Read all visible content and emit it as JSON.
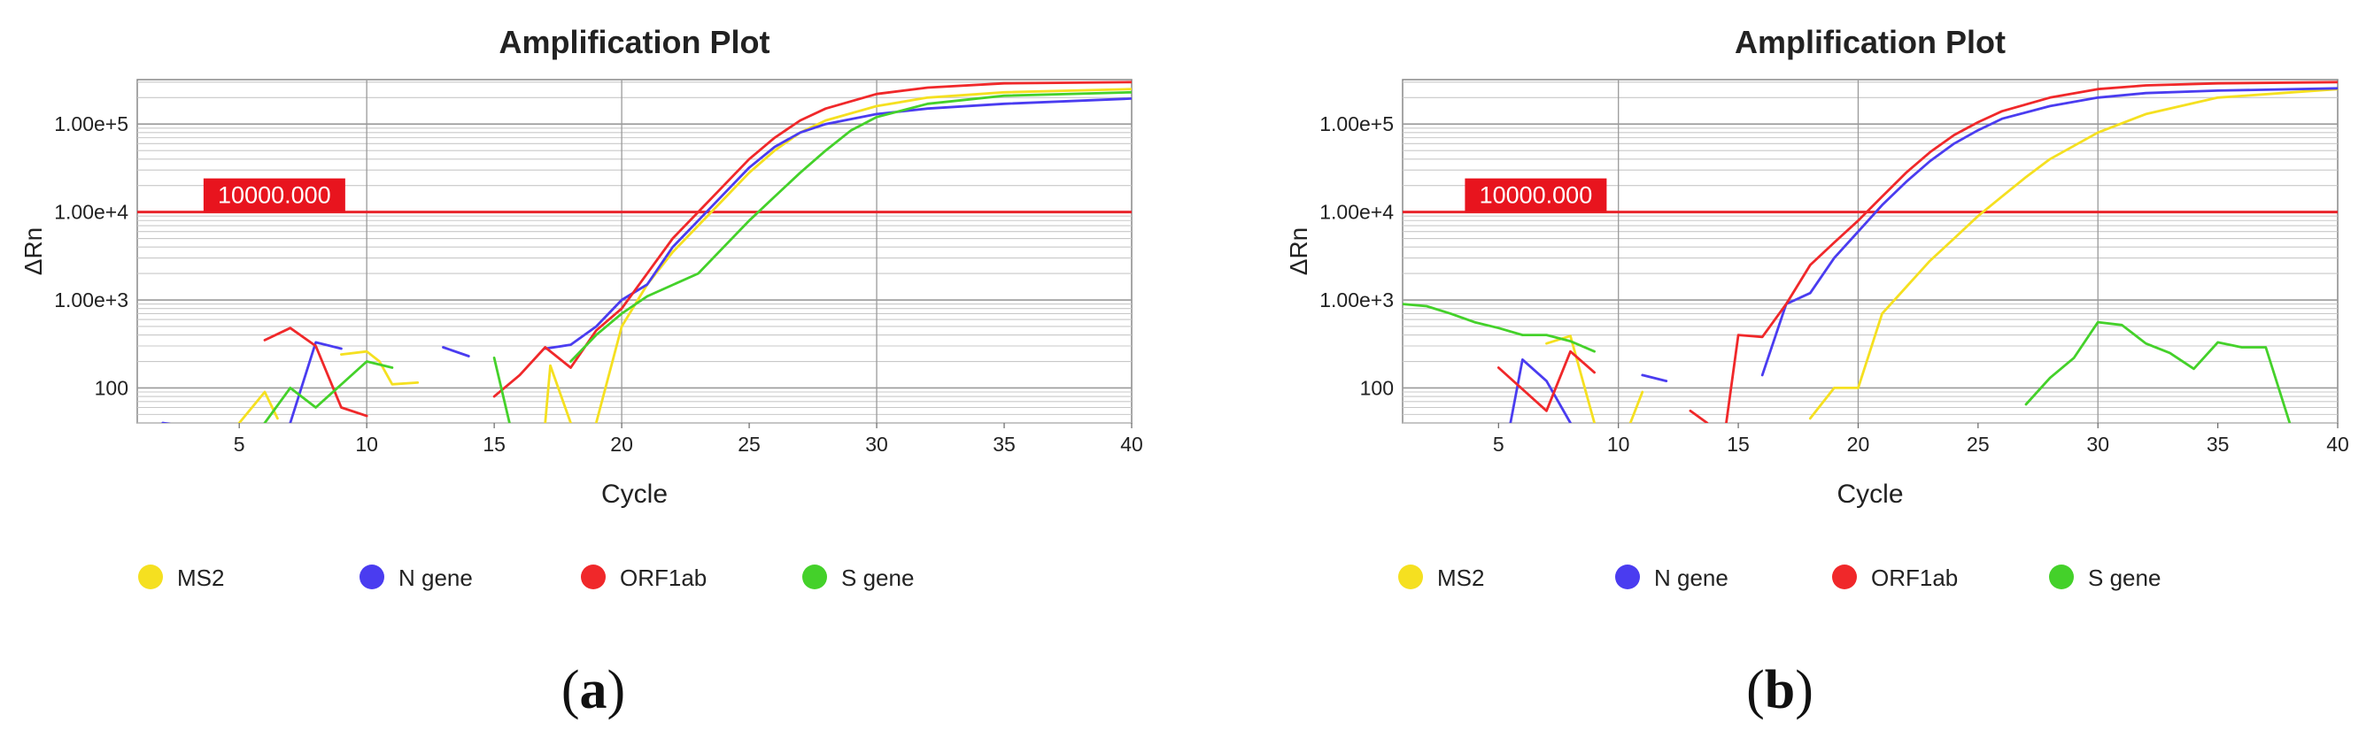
{
  "chart_data": [
    {
      "type": "line",
      "panel_label": "a",
      "title": "Amplification Plot",
      "xlabel": "Cycle",
      "ylabel": "ΔRn",
      "xlim": [
        1,
        40
      ],
      "ylim_log": [
        40,
        320000
      ],
      "y_scale": "log",
      "x_ticks": [
        5,
        10,
        15,
        20,
        25,
        30,
        35,
        40
      ],
      "y_ticks": [
        {
          "value": 100,
          "label": "100"
        },
        {
          "value": 1000,
          "label": "1.00e+3"
        },
        {
          "value": 10000,
          "label": "1.00e+4"
        },
        {
          "value": 100000,
          "label": "1.00e+5"
        }
      ],
      "threshold": {
        "value": 10000,
        "label": "10000.000",
        "color": "#e8242c"
      },
      "legend_position": "bottom",
      "series": [
        {
          "name": "MS2",
          "color": "#f5e020",
          "segments": [
            [
              [
                5,
                40
              ],
              [
                6,
                90
              ],
              [
                6.5,
                45
              ]
            ],
            [
              [
                9,
                240
              ],
              [
                10,
                260
              ],
              [
                10.5,
                200
              ],
              [
                11,
                110
              ],
              [
                12,
                115
              ]
            ],
            [
              [
                17,
                40
              ],
              [
                17.2,
                180
              ],
              [
                18,
                40
              ]
            ],
            [
              [
                19,
                40
              ],
              [
                20,
                500
              ],
              [
                21,
                1500
              ],
              [
                22,
                3500
              ],
              [
                23,
                7000
              ],
              [
                24,
                14000
              ],
              [
                25,
                28000
              ],
              [
                26,
                50000
              ],
              [
                27,
                80000
              ],
              [
                28,
                110000
              ],
              [
                30,
                160000
              ],
              [
                32,
                200000
              ],
              [
                35,
                230000
              ],
              [
                40,
                250000
              ]
            ]
          ]
        },
        {
          "name": "N gene",
          "color": "#4a3cf0",
          "segments": [
            [
              [
                2,
                40
              ],
              [
                2.5,
                38
              ]
            ],
            [
              [
                7,
                40
              ],
              [
                8,
                330
              ],
              [
                9,
                280
              ]
            ],
            [
              [
                13,
                290
              ],
              [
                14,
                230
              ]
            ],
            [
              [
                17,
                280
              ],
              [
                18,
                310
              ],
              [
                19,
                500
              ],
              [
                20,
                1000
              ],
              [
                21,
                1500
              ],
              [
                22,
                4000
              ],
              [
                23,
                8000
              ],
              [
                24,
                16000
              ],
              [
                25,
                32000
              ],
              [
                26,
                55000
              ],
              [
                27,
                80000
              ],
              [
                28,
                100000
              ],
              [
                30,
                130000
              ],
              [
                32,
                150000
              ],
              [
                35,
                170000
              ],
              [
                40,
                195000
              ]
            ]
          ]
        },
        {
          "name": "ORF1ab",
          "color": "#f0282a",
          "segments": [
            [
              [
                6,
                350
              ],
              [
                7,
                480
              ],
              [
                8,
                300
              ],
              [
                9,
                60
              ],
              [
                10,
                48
              ]
            ],
            [
              [
                15,
                80
              ],
              [
                16,
                140
              ],
              [
                17,
                290
              ],
              [
                18,
                170
              ],
              [
                19,
                450
              ],
              [
                20,
                800
              ],
              [
                21,
                2000
              ],
              [
                22,
                5000
              ],
              [
                23,
                10000
              ],
              [
                24,
                20000
              ],
              [
                25,
                40000
              ],
              [
                26,
                70000
              ],
              [
                27,
                110000
              ],
              [
                28,
                150000
              ],
              [
                30,
                220000
              ],
              [
                32,
                260000
              ],
              [
                35,
                290000
              ],
              [
                40,
                300000
              ]
            ]
          ]
        },
        {
          "name": "S gene",
          "color": "#44d12a",
          "segments": [
            [
              [
                6,
                40
              ],
              [
                7,
                100
              ],
              [
                8,
                60
              ],
              [
                10,
                200
              ],
              [
                11,
                170
              ]
            ],
            [
              [
                15,
                220
              ],
              [
                15.6,
                40
              ]
            ],
            [
              [
                18,
                200
              ],
              [
                19,
                400
              ],
              [
                20,
                700
              ],
              [
                21,
                1100
              ],
              [
                23,
                2000
              ],
              [
                24,
                4000
              ],
              [
                25,
                8000
              ],
              [
                26,
                15000
              ],
              [
                27,
                28000
              ],
              [
                28,
                50000
              ],
              [
                29,
                85000
              ],
              [
                30,
                120000
              ],
              [
                32,
                170000
              ],
              [
                35,
                210000
              ],
              [
                40,
                230000
              ]
            ]
          ]
        }
      ]
    },
    {
      "type": "line",
      "panel_label": "b",
      "title": "Amplification Plot",
      "xlabel": "Cycle",
      "ylabel": "ΔRn",
      "xlim": [
        1,
        40
      ],
      "ylim_log": [
        40,
        320000
      ],
      "y_scale": "log",
      "x_ticks": [
        5,
        10,
        15,
        20,
        25,
        30,
        35,
        40
      ],
      "y_ticks": [
        {
          "value": 100,
          "label": "100"
        },
        {
          "value": 1000,
          "label": "1.00e+3"
        },
        {
          "value": 10000,
          "label": "1.00e+4"
        },
        {
          "value": 100000,
          "label": "1.00e+5"
        }
      ],
      "threshold": {
        "value": 10000,
        "label": "10000.000",
        "color": "#e8242c"
      },
      "legend_position": "bottom",
      "series": [
        {
          "name": "MS2",
          "color": "#f5e020",
          "segments": [
            [
              [
                7,
                320
              ],
              [
                8,
                390
              ],
              [
                9,
                40
              ]
            ],
            [
              [
                10.5,
                40
              ],
              [
                11,
                90
              ]
            ],
            [
              [
                18,
                45
              ],
              [
                19,
                100
              ],
              [
                20,
                100
              ],
              [
                21,
                700
              ],
              [
                22,
                1400
              ],
              [
                23,
                2800
              ],
              [
                24,
                5000
              ],
              [
                25,
                9000
              ],
              [
                26,
                15000
              ],
              [
                27,
                25000
              ],
              [
                28,
                40000
              ],
              [
                30,
                80000
              ],
              [
                32,
                130000
              ],
              [
                35,
                200000
              ],
              [
                40,
                250000
              ]
            ]
          ]
        },
        {
          "name": "N gene",
          "color": "#4a3cf0",
          "segments": [
            [
              [
                5.5,
                40
              ],
              [
                6,
                210
              ],
              [
                7,
                120
              ],
              [
                8,
                40
              ]
            ],
            [
              [
                11,
                140
              ],
              [
                12,
                120
              ]
            ],
            [
              [
                16,
                140
              ],
              [
                17,
                900
              ],
              [
                18,
                1200
              ],
              [
                19,
                3000
              ],
              [
                20,
                6000
              ],
              [
                21,
                12000
              ],
              [
                22,
                22000
              ],
              [
                23,
                38000
              ],
              [
                24,
                60000
              ],
              [
                25,
                85000
              ],
              [
                26,
                115000
              ],
              [
                28,
                160000
              ],
              [
                30,
                200000
              ],
              [
                32,
                225000
              ],
              [
                35,
                240000
              ],
              [
                40,
                255000
              ]
            ]
          ]
        },
        {
          "name": "ORF1ab",
          "color": "#f0282a",
          "segments": [
            [
              [
                5,
                170
              ],
              [
                7,
                55
              ],
              [
                8,
                260
              ],
              [
                9,
                150
              ]
            ],
            [
              [
                13,
                55
              ],
              [
                13.7,
                40
              ]
            ],
            [
              [
                14.5,
                40
              ],
              [
                15,
                400
              ],
              [
                16,
                380
              ],
              [
                17,
                900
              ],
              [
                18,
                2500
              ],
              [
                19,
                4500
              ],
              [
                20,
                8000
              ],
              [
                21,
                15000
              ],
              [
                22,
                28000
              ],
              [
                23,
                48000
              ],
              [
                24,
                75000
              ],
              [
                25,
                105000
              ],
              [
                26,
                140000
              ],
              [
                28,
                200000
              ],
              [
                30,
                250000
              ],
              [
                32,
                275000
              ],
              [
                35,
                290000
              ],
              [
                40,
                300000
              ]
            ]
          ]
        },
        {
          "name": "S gene",
          "color": "#44d12a",
          "segments": [
            [
              [
                1,
                900
              ],
              [
                2,
                850
              ],
              [
                3,
                700
              ],
              [
                4,
                560
              ],
              [
                5,
                480
              ],
              [
                6,
                400
              ],
              [
                7,
                400
              ],
              [
                8,
                340
              ],
              [
                9,
                260
              ]
            ],
            [
              [
                27,
                65
              ],
              [
                28,
                130
              ],
              [
                29,
                220
              ],
              [
                30,
                560
              ],
              [
                31,
                520
              ],
              [
                32,
                320
              ],
              [
                33,
                250
              ],
              [
                34,
                165
              ],
              [
                35,
                330
              ],
              [
                36,
                290
              ],
              [
                37,
                290
              ],
              [
                38,
                40
              ]
            ]
          ]
        }
      ]
    }
  ]
}
